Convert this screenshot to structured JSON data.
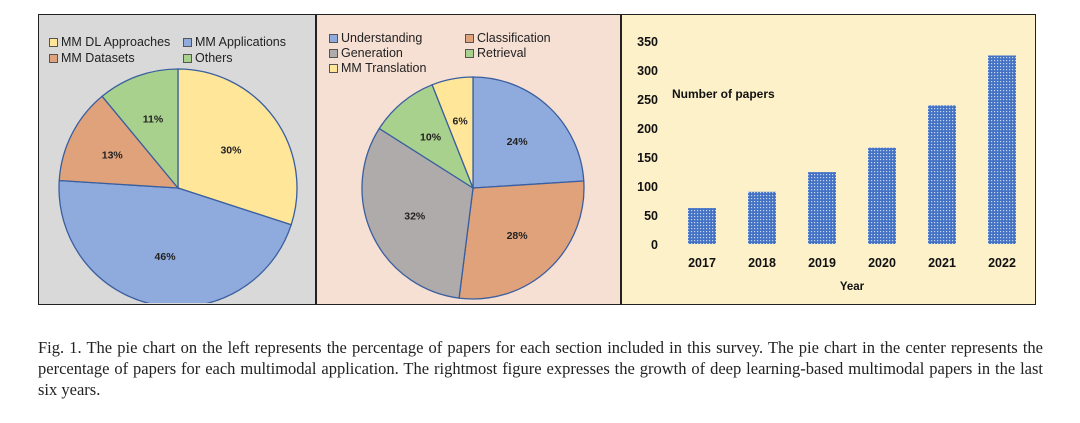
{
  "chart_data": [
    {
      "type": "pie",
      "slices": [
        {
          "label": "MM DL Approaches",
          "value": 30,
          "value_label": "30%",
          "color": "#ffe699"
        },
        {
          "label": "MM Applications",
          "value": 46,
          "value_label": "46%",
          "color": "#8faadc"
        },
        {
          "label": "MM Datasets",
          "value": 13,
          "value_label": "13%",
          "color": "#e0a27a"
        },
        {
          "label": "Others",
          "value": 11,
          "value_label": "11%",
          "color": "#a9d18e"
        }
      ],
      "legend_position": "top",
      "background": "#d9d9d9"
    },
    {
      "type": "pie",
      "slices": [
        {
          "label": "Understanding",
          "value": 24,
          "value_label": "24%",
          "color": "#8faadc"
        },
        {
          "label": "Classification",
          "value": 28,
          "value_label": "28%",
          "color": "#e0a27a"
        },
        {
          "label": "Generation",
          "value": 32,
          "value_label": "32%",
          "color": "#afabab"
        },
        {
          "label": "Retrieval",
          "value": 10,
          "value_label": "10%",
          "color": "#a9d18e"
        },
        {
          "label": "MM Translation",
          "value": 6,
          "value_label": "6%",
          "color": "#ffe699"
        }
      ],
      "legend_position": "top",
      "background": "#f6dfd3"
    },
    {
      "type": "bar",
      "title": "Number of papers",
      "categories": [
        "2017",
        "2018",
        "2019",
        "2020",
        "2021",
        "2022"
      ],
      "values": [
        62,
        90,
        124,
        166,
        239,
        325
      ],
      "xlabel": "Year",
      "ylabel": "",
      "ylim": [
        0,
        350
      ],
      "yticks": [
        "0",
        "50",
        "100",
        "150",
        "200",
        "250",
        "300",
        "350"
      ],
      "grid": false,
      "bar_color": "#4472c4",
      "background": "#fdf1c9"
    }
  ],
  "caption": "Fig. 1.  The pie chart on the left represents the percentage of papers for each section included in this survey. The pie chart in the center represents the percentage of papers for each multimodal application. The rightmost figure expresses the growth of deep learning-based multimodal papers in the last six years."
}
